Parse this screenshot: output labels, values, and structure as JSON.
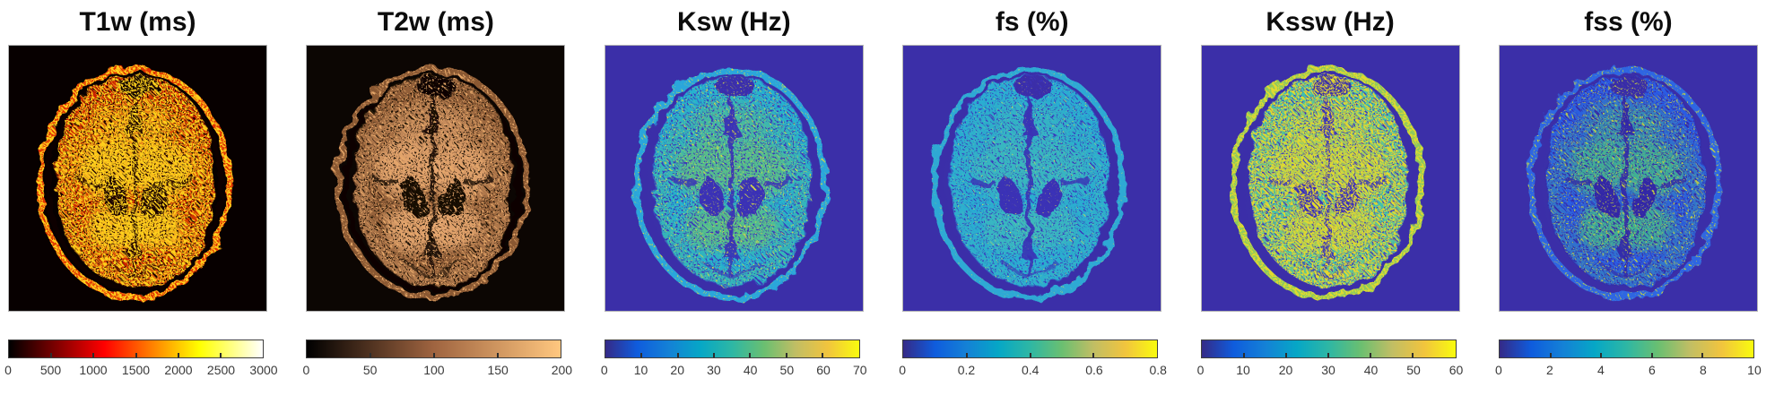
{
  "figure": {
    "background": "#ffffff",
    "content": "Six axial brain MRI quantitative parameter maps with colorbars"
  },
  "panels": [
    {
      "id": "t1w",
      "title": "T1w (ms)",
      "colormap": "hot",
      "ticks": [
        "0",
        "500",
        "1000",
        "1500",
        "2000",
        "2500",
        "3000"
      ],
      "art": {
        "bg": "#070000",
        "ring": "#e03000",
        "base": "#cd2400",
        "glow": "#ffd021",
        "glowOp": 0.85,
        "dark": "#190000",
        "speckle": "#ffd21c",
        "spkGain": 8,
        "spkBias": -3.4,
        "darkSpeckle": "#1c0000",
        "dspkGain": 8,
        "dspkBias": -4.5
      }
    },
    {
      "id": "t2w",
      "title": "T2w (ms)",
      "colormap": "copper",
      "ticks": [
        "0",
        "50",
        "100",
        "150",
        "200"
      ],
      "art": {
        "bg": "#0c0603",
        "ring": "#8a5831",
        "base": "#925f38",
        "glow": "#f0b078",
        "glowOp": 0.8,
        "dark": "#170b04",
        "speckle": "#e8a96b",
        "spkGain": 8,
        "spkBias": -4.4,
        "darkSpeckle": "#150a03",
        "dspkGain": 8,
        "dspkBias": -4.5
      }
    },
    {
      "id": "ksw",
      "title": "Ksw (Hz)",
      "colormap": "parula",
      "ticks": [
        "0",
        "10",
        "20",
        "30",
        "40",
        "50",
        "60",
        "70"
      ],
      "art": {
        "bg": "#3b2fa8",
        "ring": "#2ba6db",
        "base": "#27b2cf",
        "glow": "#63c378",
        "glowOp": 0.75,
        "dark": "#3a30b4",
        "speckle": "#d7d944",
        "spkGain": 8,
        "spkBias": -5.0,
        "darkSpeckle": "#3a31bb",
        "dspkGain": 8,
        "dspkBias": -4.4
      }
    },
    {
      "id": "fs",
      "title": "fs (%)",
      "colormap": "parula",
      "ticks": [
        "0",
        "0.2",
        "0.4",
        "0.6",
        "0.8"
      ],
      "art": {
        "bg": "#3b2fa8",
        "ring": "#2fa9d4",
        "base": "#2aadd2",
        "glow": "#49bfb0",
        "glowOp": 0.5,
        "dark": "#3a30b4",
        "speckle": "#dede4c",
        "spkGain": 8,
        "spkBias": -5.6,
        "darkSpeckle": "#3a31bb",
        "dspkGain": 8,
        "dspkBias": -4.6
      }
    },
    {
      "id": "kssw",
      "title": "Kssw (Hz)",
      "colormap": "parula",
      "ticks": [
        "0",
        "10",
        "20",
        "30",
        "40",
        "50",
        "60"
      ],
      "art": {
        "bg": "#3b2fa8",
        "ring": "#8cc95e",
        "base": "#3bbfb4",
        "glow": "#b9d24a",
        "glowOp": 0.85,
        "dark": "#3a30b8",
        "speckle": "#e3d92f",
        "spkGain": 8,
        "spkBias": -3.5,
        "darkSpeckle": "#3a30bd",
        "dspkGain": 8,
        "dspkBias": -4.6
      }
    },
    {
      "id": "fss",
      "title": "fss (%)",
      "colormap": "parula",
      "ticks": [
        "0",
        "2",
        "4",
        "6",
        "8",
        "10"
      ],
      "art": {
        "bg": "#3b2fa8",
        "ring": "#2f66e2",
        "base": "#2b5ce4",
        "glow": "#46c184",
        "glowOp": 0.8,
        "dark": "#3328a6",
        "speckle": "#c6d23e",
        "spkGain": 8,
        "spkBias": -4.8,
        "darkSpeckle": "#342ba8",
        "dspkGain": 8,
        "dspkBias": -4.3
      }
    }
  ],
  "chart_data": [
    {
      "type": "heatmap",
      "title": "T1w (ms)",
      "colormap": "hot",
      "units": "ms",
      "colorbar_range": [
        0,
        3000
      ],
      "colorbar_ticks": [
        0,
        500,
        1000,
        1500,
        2000,
        2500,
        3000
      ],
      "subject": "axial brain slice"
    },
    {
      "type": "heatmap",
      "title": "T2w (ms)",
      "colormap": "copper",
      "units": "ms",
      "colorbar_range": [
        0,
        200
      ],
      "colorbar_ticks": [
        0,
        50,
        100,
        150,
        200
      ],
      "subject": "axial brain slice"
    },
    {
      "type": "heatmap",
      "title": "Ksw (Hz)",
      "colormap": "parula",
      "units": "Hz",
      "colorbar_range": [
        0,
        70
      ],
      "colorbar_ticks": [
        0,
        10,
        20,
        30,
        40,
        50,
        60,
        70
      ],
      "subject": "axial brain slice"
    },
    {
      "type": "heatmap",
      "title": "fs (%)",
      "colormap": "parula",
      "units": "%",
      "colorbar_range": [
        0,
        0.8
      ],
      "colorbar_ticks": [
        0,
        0.2,
        0.4,
        0.6,
        0.8
      ],
      "subject": "axial brain slice"
    },
    {
      "type": "heatmap",
      "title": "Kssw (Hz)",
      "colormap": "parula",
      "units": "Hz",
      "colorbar_range": [
        0,
        60
      ],
      "colorbar_ticks": [
        0,
        10,
        20,
        30,
        40,
        50,
        60
      ],
      "subject": "axial brain slice"
    },
    {
      "type": "heatmap",
      "title": "fss (%)",
      "colormap": "parula",
      "units": "%",
      "colorbar_range": [
        0,
        10
      ],
      "colorbar_ticks": [
        0,
        2,
        4,
        6,
        8,
        10
      ],
      "subject": "axial brain slice"
    }
  ]
}
